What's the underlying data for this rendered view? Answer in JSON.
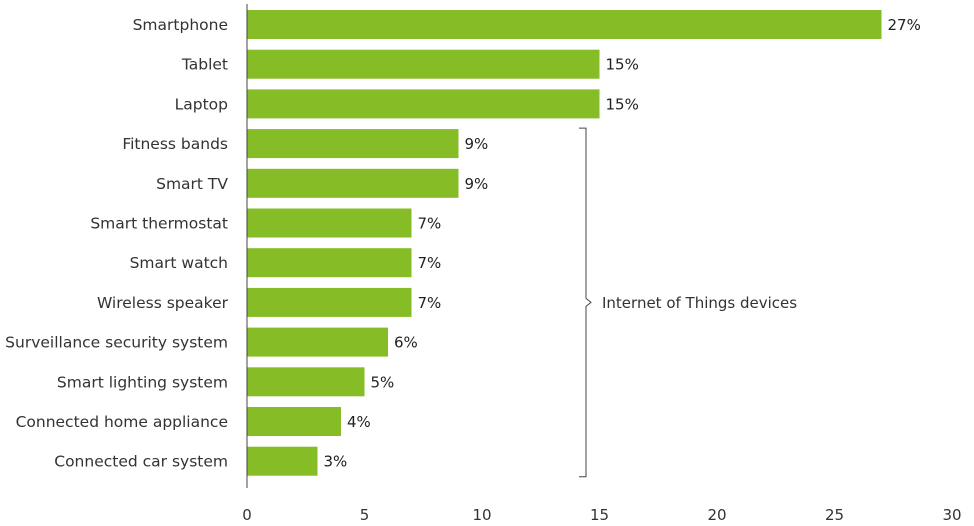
{
  "chart_data": {
    "type": "bar",
    "orientation": "horizontal",
    "categories": [
      "Smartphone",
      "Tablet",
      "Laptop",
      "Fitness bands",
      "Smart TV",
      "Smart thermostat",
      "Smart watch",
      "Wireless speaker",
      "Surveillance security system",
      "Smart lighting system",
      "Connected home appliance",
      "Connected car system"
    ],
    "values": [
      27,
      15,
      15,
      9,
      9,
      7,
      7,
      7,
      6,
      5,
      4,
      3
    ],
    "value_labels": [
      "27%",
      "15%",
      "15%",
      "9%",
      "9%",
      "7%",
      "7%",
      "7%",
      "6%",
      "5%",
      "4%",
      "3%"
    ],
    "title": "",
    "xlabel": "",
    "ylabel": "",
    "xlim": [
      0,
      30
    ],
    "xticks": [
      0,
      5,
      10,
      15,
      20,
      25,
      30
    ],
    "xtick_labels": [
      "0",
      "5",
      "10",
      "15",
      "20",
      "25",
      "30"
    ],
    "grid": false,
    "bar_color": "#86bc25",
    "annotation": {
      "text": "Internet of Things devices",
      "bracket_start_category": "Fitness bands",
      "bracket_end_category": "Connected car system"
    }
  }
}
